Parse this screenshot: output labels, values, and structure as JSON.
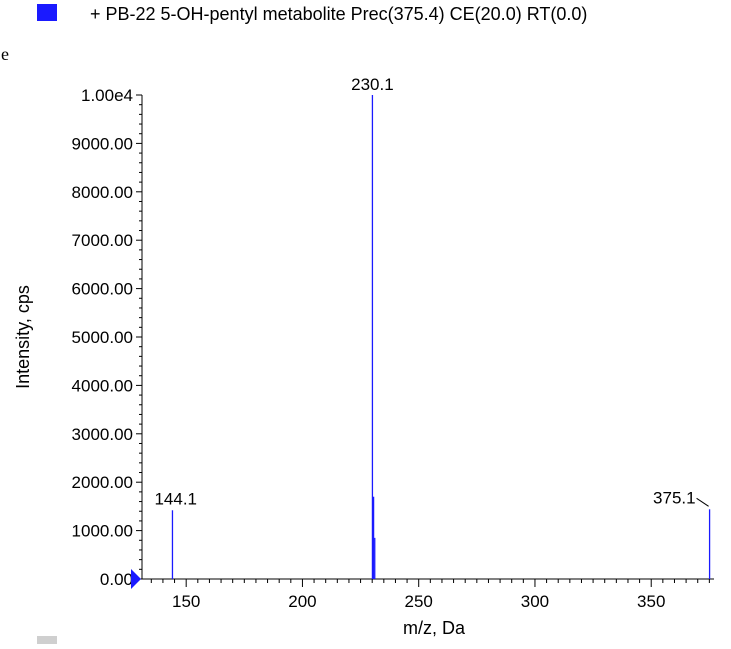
{
  "legend": {
    "label": "+ PB-22 5-OH-pentyl metabolite Prec(375.4) CE(20.0) RT(0.0)",
    "swatch_color": "#1a1aff"
  },
  "stray_glyph": "e",
  "colors": {
    "series": "#1a1aff",
    "axis": "#000000",
    "marker": "#1a1aff"
  },
  "chart_data": {
    "type": "bar",
    "title": "",
    "xlabel": "m/z, Da",
    "ylabel": "Intensity, cps",
    "xlim": [
      131,
      377
    ],
    "ylim": [
      0,
      10000
    ],
    "x_ticks": [
      150,
      200,
      250,
      300,
      350
    ],
    "x_minor_step": 5,
    "y_ticks": [
      0,
      1000,
      2000,
      3000,
      4000,
      5000,
      6000,
      7000,
      8000,
      9000,
      10000
    ],
    "y_tick_labels": [
      "0.00",
      "1000.00",
      "2000.00",
      "3000.00",
      "4000.00",
      "5000.00",
      "6000.00",
      "7000.00",
      "8000.00",
      "9000.00",
      "1.00e4"
    ],
    "y_minor_step": 200,
    "series": [
      {
        "name": "+ PB-22 5-OH-pentyl metabolite Prec(375.4) CE(20.0) RT(0.0)",
        "points": [
          {
            "x": 144.1,
            "y": 1420
          },
          {
            "x": 230.1,
            "y": 10000
          },
          {
            "x": 230.6,
            "y": 1700
          },
          {
            "x": 231.1,
            "y": 850
          },
          {
            "x": 375.1,
            "y": 1440
          }
        ]
      }
    ],
    "peak_labels": [
      {
        "text": "144.1",
        "x": 144.1,
        "y": 1420
      },
      {
        "text": "230.1",
        "x": 230.1,
        "y": 10000
      },
      {
        "text": "375.1",
        "x": 375.1,
        "y": 1440
      }
    ],
    "grid": false,
    "legend_position": "top"
  }
}
